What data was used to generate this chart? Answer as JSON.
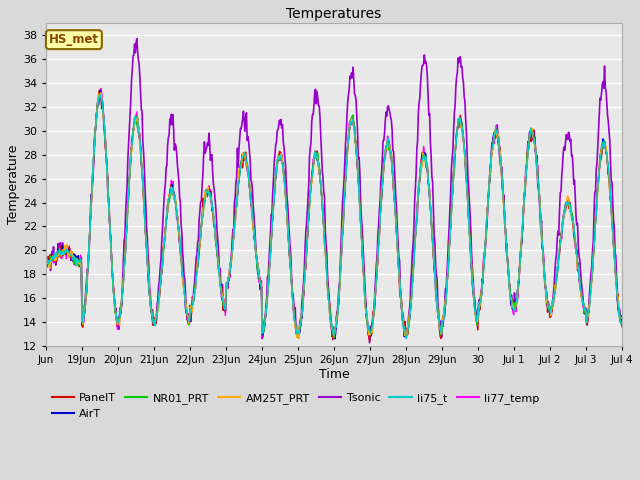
{
  "title": "Temperatures",
  "xlabel": "Time",
  "ylabel": "Temperature",
  "ylim": [
    12,
    39
  ],
  "yticks": [
    12,
    14,
    16,
    18,
    20,
    22,
    24,
    26,
    28,
    30,
    32,
    34,
    36,
    38
  ],
  "background_color": "#d9d9d9",
  "plot_bg_color": "#e8e8e8",
  "grid_color": "white",
  "series_colors": {
    "PanelT": "#dd0000",
    "AirT": "#0000cc",
    "NR01_PRT": "#00cc00",
    "AM25T_PRT": "#ffaa00",
    "Tsonic": "#9900cc",
    "li75_t": "#00cccc",
    "li77_temp": "#ff00ff"
  },
  "legend_labels": [
    "PanelT",
    "AirT",
    "NR01_PRT",
    "AM25T_PRT",
    "Tsonic",
    "li75_t",
    "li77_temp"
  ],
  "xtick_labels": [
    "Jun",
    "19Jun",
    "20Jun",
    "21Jun",
    "22Jun",
    "23Jun",
    "24Jun",
    "25Jun",
    "26Jun",
    "27Jun",
    "28Jun",
    "29Jun",
    "30",
    "Jul 1",
    "Jul 2",
    "Jul 3",
    "Jul 4"
  ],
  "annotation_text": "HS_met",
  "annotation_color": "#884400",
  "annotation_bg": "#ffffaa",
  "annotation_border": "#886600"
}
